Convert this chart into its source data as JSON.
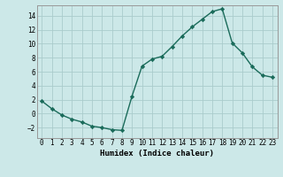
{
  "x": [
    0,
    1,
    2,
    3,
    4,
    5,
    6,
    7,
    8,
    9,
    10,
    11,
    12,
    13,
    14,
    15,
    16,
    17,
    18,
    19,
    20,
    21,
    22,
    23
  ],
  "y": [
    1.8,
    0.7,
    -0.2,
    -0.8,
    -1.2,
    -1.8,
    -2.0,
    -2.3,
    -2.4,
    2.5,
    6.8,
    7.8,
    8.2,
    9.6,
    11.1,
    12.4,
    13.5,
    14.6,
    15.0,
    10.1,
    8.7,
    6.7,
    5.5,
    5.2
  ],
  "line_color": "#1a6b5a",
  "bg_color": "#cce8e8",
  "grid_color": "#aacccc",
  "xlabel": "Humidex (Indice chaleur)",
  "ylim": [
    -3.5,
    15.5
  ],
  "xlim": [
    -0.5,
    23.5
  ],
  "yticks": [
    -2,
    0,
    2,
    4,
    6,
    8,
    10,
    12,
    14
  ],
  "xticks": [
    0,
    1,
    2,
    3,
    4,
    5,
    6,
    7,
    8,
    9,
    10,
    11,
    12,
    13,
    14,
    15,
    16,
    17,
    18,
    19,
    20,
    21,
    22,
    23
  ],
  "xtick_labels": [
    "0",
    "1",
    "2",
    "3",
    "4",
    "5",
    "6",
    "7",
    "8",
    "9",
    "10",
    "11",
    "12",
    "13",
    "14",
    "15",
    "16",
    "17",
    "18",
    "19",
    "20",
    "21",
    "22",
    "23"
  ],
  "marker": "D",
  "markersize": 2.2,
  "linewidth": 1.0,
  "tick_fontsize": 5.5,
  "xlabel_fontsize": 6.5
}
